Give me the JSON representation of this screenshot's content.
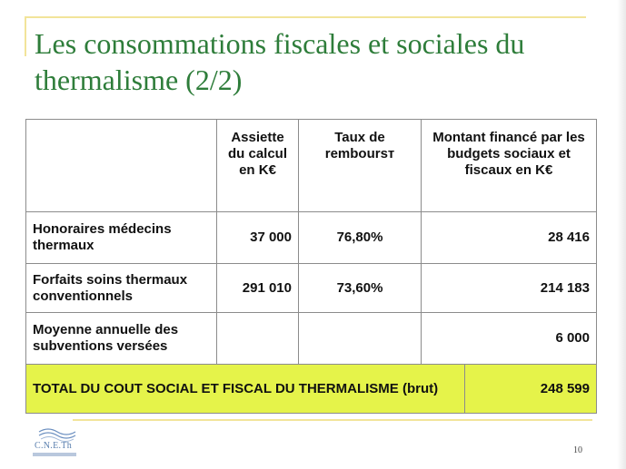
{
  "slide": {
    "title": "Les consommations fiscales et sociales du thermalisme (2/2)",
    "page_number": "10",
    "logo_text": "C.N.E.Th"
  },
  "table": {
    "headers": [
      "",
      "Assiette du calcul en K€",
      "Taux de remboursт",
      "Montant financé par les budgets sociaux et fiscaux en K€"
    ],
    "rows": [
      {
        "label": "Honoraires médecins thermaux",
        "assiette": "37 000",
        "taux": "76,80%",
        "montant": "28 416"
      },
      {
        "label": "Forfaits soins thermaux conventionnels",
        "assiette": "291 010",
        "taux": "73,60%",
        "montant": "214 183"
      },
      {
        "label": "Moyenne annuelle des subventions versées",
        "assiette": "",
        "taux": "",
        "montant": "6 000"
      }
    ],
    "total": {
      "label": "TOTAL DU COUT SOCIAL ET FISCAL DU THERMALISME (brut)",
      "montant": "248 599"
    },
    "total_color": "#e5f34a"
  }
}
